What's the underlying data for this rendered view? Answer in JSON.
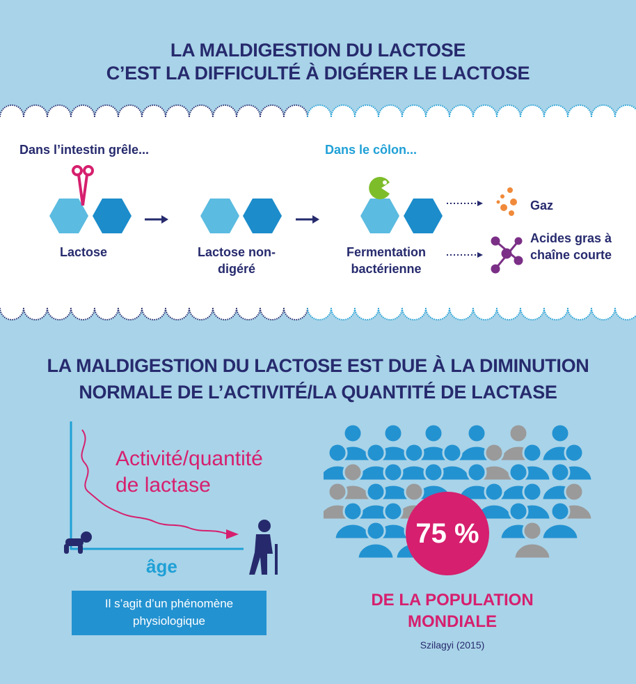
{
  "top_title": {
    "line1": "LA MALDIGESTION DU LACTOSE",
    "line2": "C’EST LA DIFFICULTÉ À DIGÉRER LE LACTOSE"
  },
  "intestine": {
    "heading": "Dans l’intestin grêle...",
    "steps": [
      "Lactose",
      "Lactose non-digéré"
    ]
  },
  "colon": {
    "heading": "Dans le côlon...",
    "step": "Fermentation bactérienne",
    "outputs": [
      "Gaz",
      "Acides gras à chaîne courte"
    ]
  },
  "bottom_title": {
    "line1": "LA MALDIGESTION DU LACTOSE EST DUE À LA DIMINUTION",
    "line2": "NORMALE DE L’ACTIVITÉ/LA QUANTITÉ DE LACTASE"
  },
  "graph": {
    "curve_label_line1": "Activité/quantité",
    "curve_label_line2": "de lactase",
    "axis_label": "âge",
    "note_line1": "Il s’agit d’un phénomène",
    "note_line2": "physiologique"
  },
  "stat": {
    "percent": "75 %",
    "line1": "DE LA POPULATION",
    "line2": "MONDIALE",
    "source": "Szilagyi (2015)"
  },
  "icons": {
    "scissors": "scissors-icon",
    "pacman": "bacteria-icon",
    "gas": "gas-bubbles-icon",
    "molecule": "molecule-icon",
    "baby": "baby-icon",
    "elder": "elderly-person-icon"
  },
  "colors": {
    "background": "#a9d3e8",
    "navy": "#262a6d",
    "pink": "#d61f6e",
    "blue": "#1fa0d6",
    "hex_light": "#5bbbe0",
    "hex_dark": "#1c8ccb",
    "crowd_blue": "#2392d1",
    "crowd_grey": "#9a9a9a",
    "orange": "#f08a3a",
    "purple": "#7b2f86",
    "green": "#7ebd2a"
  }
}
